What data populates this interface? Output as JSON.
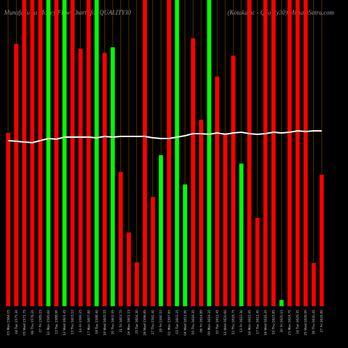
{
  "chart_data": {
    "type": "bar",
    "title": "MunafaSutra Money Flow Charts for QUALITY30",
    "subtitle": "(Kotakamc - Quality30) MunafaSutra.com",
    "categories": [
      "03 Mon 1564.05",
      "04 Tue 1575.30",
      "05 Wed 1571.75",
      "06 Thu 1578.20",
      "07 Fri 1589.15",
      "10 Mon 1595.60",
      "11 Tue 1588.90",
      "12 Wed 1601.45",
      "13 Thu 1603.10",
      "14 Fri 1599.25",
      "17 Mon 1607.80",
      "18 Tue 1598.40",
      "19 Wed 1605.55",
      "20 Thu 1602.95",
      "21 Fri 1603.70",
      "24 Mon 1601.15",
      "25 Tue 1604.30",
      "26 Wed 1596.85",
      "27 Thu 1592.40",
      "28 Fri 1590.10",
      "02 Mon 1597.65",
      "03 Tue 1602.25",
      "04 Wed 1611.90",
      "05 Thu 1616.35",
      "06 Fri 1614.80",
      "09 Mon 1619.20",
      "10 Tue 1612.45",
      "11 Wed 1620.60",
      "12 Thu 1618.75",
      "13 Fri 1622.30",
      "16 Mon 1615.95",
      "17 Tue 1611.40",
      "18 Wed 1616.20",
      "19 Thu 1623.85",
      "20 Fri 1620.15",
      "23 Mon 1624.70",
      "24 Tue 1629.35",
      "25 Wed 1626.90",
      "26 Thu 1630.45",
      "27 Fri 1629.80"
    ],
    "series": [
      {
        "name": "Money Flow",
        "values": [
          249,
          377,
          440,
          440,
          440,
          440,
          440,
          440,
          440,
          370,
          440,
          440,
          364,
          372,
          193,
          106,
          63,
          440,
          157,
          217,
          440,
          440,
          175,
          385,
          268,
          440,
          330,
          249,
          360,
          205,
          440,
          127,
          440,
          440,
          9,
          440,
          440,
          440,
          62,
          189
        ],
        "colors": [
          "#ff0000",
          "#ff0000",
          "#ff0000",
          "#ff0000",
          "#ff0000",
          "#00ff00",
          "#ff0000",
          "#00ff00",
          "#ff0000",
          "#ff0000",
          "#ff0000",
          "#00ff00",
          "#ff0000",
          "#00ff00",
          "#ff0000",
          "#ff0000",
          "#ff0000",
          "#ff0000",
          "#ff0000",
          "#00ff00",
          "#ff0000",
          "#00ff00",
          "#00ff00",
          "#ff0000",
          "#ff0000",
          "#00ff00",
          "#ff0000",
          "#ff0000",
          "#ff0000",
          "#00ff00",
          "#ff0000",
          "#ff0000",
          "#ff0000",
          "#ff0000",
          "#00ff00",
          "#ff0000",
          "#ff0000",
          "#ff0000",
          "#ff0000",
          "#ff0000"
        ]
      },
      {
        "name": "Price",
        "type": "line",
        "color": "#ffffff",
        "values": [
          238,
          237,
          236,
          235,
          238,
          241,
          240,
          243,
          243,
          243,
          243,
          242,
          244,
          243,
          244,
          244,
          244,
          244,
          242,
          241,
          241,
          243,
          245,
          248,
          248,
          247,
          249,
          247,
          249,
          250,
          248,
          247,
          248,
          250,
          249,
          250,
          252,
          251,
          252,
          252
        ]
      }
    ],
    "ylim": [
      0,
      440
    ],
    "grid": true,
    "grid_color": "#8a4a00"
  }
}
